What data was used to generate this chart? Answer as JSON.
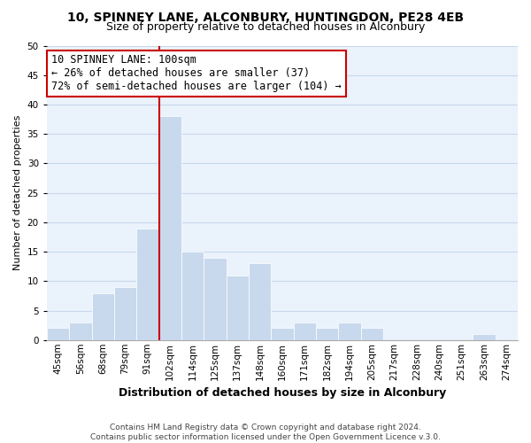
{
  "title": "10, SPINNEY LANE, ALCONBURY, HUNTINGDON, PE28 4EB",
  "subtitle": "Size of property relative to detached houses in Alconbury",
  "xlabel": "Distribution of detached houses by size in Alconbury",
  "ylabel": "Number of detached properties",
  "bin_labels": [
    "45sqm",
    "56sqm",
    "68sqm",
    "79sqm",
    "91sqm",
    "102sqm",
    "114sqm",
    "125sqm",
    "137sqm",
    "148sqm",
    "160sqm",
    "171sqm",
    "182sqm",
    "194sqm",
    "205sqm",
    "217sqm",
    "228sqm",
    "240sqm",
    "251sqm",
    "263sqm",
    "274sqm"
  ],
  "bar_heights": [
    2,
    3,
    8,
    9,
    19,
    38,
    15,
    14,
    11,
    13,
    2,
    3,
    2,
    3,
    2,
    0,
    0,
    0,
    0,
    1,
    0
  ],
  "bar_color": "#c8d9ee",
  "bar_edge_color": "#ffffff",
  "highlight_line_color": "#cc0000",
  "ylim": [
    0,
    50
  ],
  "yticks": [
    0,
    5,
    10,
    15,
    20,
    25,
    30,
    35,
    40,
    45,
    50
  ],
  "annotation_title": "10 SPINNEY LANE: 100sqm",
  "annotation_line1": "← 26% of detached houses are smaller (37)",
  "annotation_line2": "72% of semi-detached houses are larger (104) →",
  "annotation_box_color": "#ffffff",
  "annotation_box_edge_color": "#cc0000",
  "footer_line1": "Contains HM Land Registry data © Crown copyright and database right 2024.",
  "footer_line2": "Contains public sector information licensed under the Open Government Licence v.3.0.",
  "grid_color": "#c8d8ed",
  "figure_bg": "#ffffff",
  "axes_bg": "#eaf2fb",
  "title_fontsize": 10,
  "subtitle_fontsize": 9,
  "xlabel_fontsize": 9,
  "ylabel_fontsize": 8,
  "tick_fontsize": 7.5,
  "footer_fontsize": 6.5,
  "ann_fontsize": 8.5
}
